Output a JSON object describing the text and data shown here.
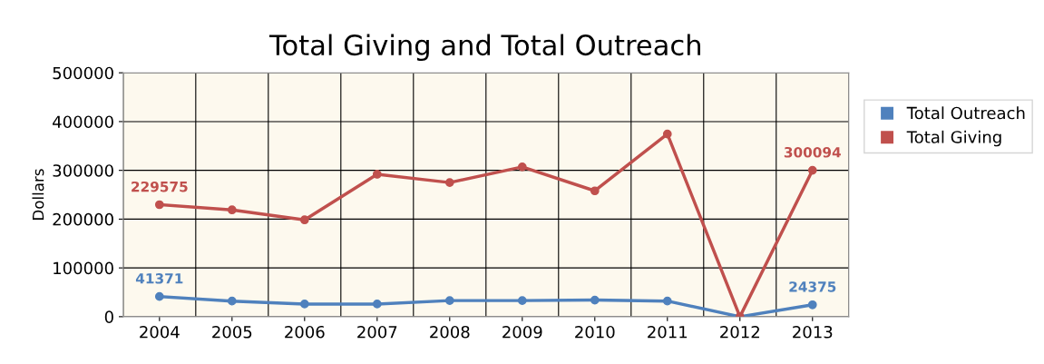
{
  "chart_data": {
    "type": "line",
    "title": "Total Giving and Total Outreach",
    "ylabel": "Dollars",
    "categories": [
      "2004",
      "2005",
      "2006",
      "2007",
      "2008",
      "2009",
      "2010",
      "2011",
      "2012",
      "2013"
    ],
    "series": [
      {
        "name": "Total Outreach",
        "color": "#4f81bd",
        "values": [
          41371,
          32000,
          26000,
          26000,
          33000,
          33000,
          34000,
          32000,
          0,
          24375
        ],
        "value_labels": [
          "41371",
          null,
          null,
          null,
          null,
          null,
          null,
          null,
          null,
          "24375"
        ]
      },
      {
        "name": "Total Giving",
        "color": "#c0504d",
        "values": [
          229575,
          219000,
          198500,
          292000,
          275000,
          307000,
          258000,
          374500,
          0,
          300094
        ],
        "value_labels": [
          "229575",
          null,
          null,
          null,
          null,
          null,
          null,
          null,
          null,
          "300094"
        ]
      }
    ],
    "ylim": [
      0,
      500000
    ],
    "yticks": [
      0,
      100000,
      200000,
      300000,
      400000,
      500000
    ],
    "grid": true,
    "legend": "right",
    "marker": "circle",
    "line_style": "solid"
  }
}
